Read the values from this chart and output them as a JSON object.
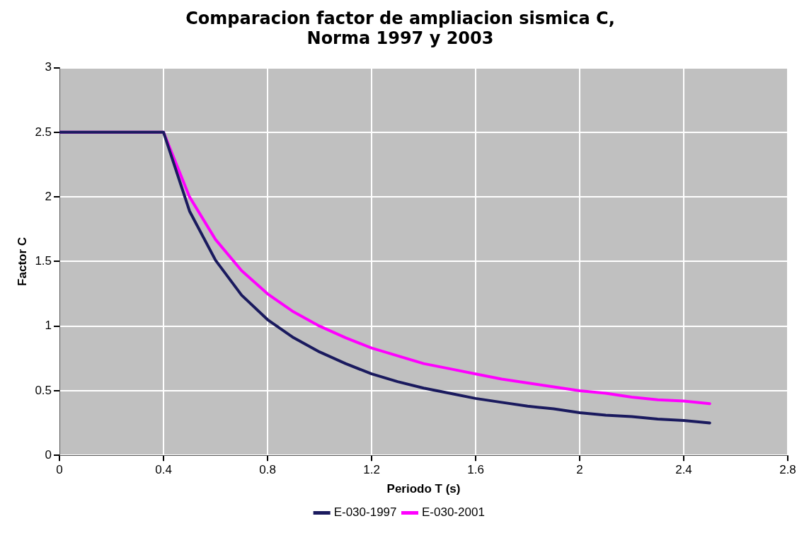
{
  "chart_data": {
    "type": "line",
    "title": [
      "Comparacion factor de ampliacion sismica C,",
      "Norma 1997 y 2003"
    ],
    "xlabel": "Periodo T (s)",
    "ylabel": "Factor C",
    "x": [
      0,
      0.4,
      0.5,
      0.6,
      0.7,
      0.8,
      0.9,
      1.0,
      1.1,
      1.2,
      1.3,
      1.4,
      1.5,
      1.6,
      1.7,
      1.8,
      1.9,
      2.0,
      2.1,
      2.2,
      2.3,
      2.4,
      2.5
    ],
    "series": [
      {
        "name": "E-030-1997",
        "color": "#1a1a5e",
        "values": [
          2.5,
          2.5,
          1.89,
          1.51,
          1.24,
          1.05,
          0.91,
          0.8,
          0.71,
          0.63,
          0.57,
          0.52,
          0.48,
          0.44,
          0.41,
          0.38,
          0.36,
          0.33,
          0.31,
          0.3,
          0.28,
          0.27,
          0.25
        ]
      },
      {
        "name": "E-030-2001",
        "color": "#ff00ff",
        "values": [
          2.5,
          2.5,
          2.0,
          1.67,
          1.43,
          1.25,
          1.11,
          1.0,
          0.91,
          0.83,
          0.77,
          0.71,
          0.67,
          0.63,
          0.59,
          0.56,
          0.53,
          0.5,
          0.48,
          0.45,
          0.43,
          0.42,
          0.4
        ]
      }
    ],
    "xlim": [
      0,
      2.8
    ],
    "xticks": [
      0,
      0.4,
      0.8,
      1.2,
      1.6,
      2,
      2.4,
      2.8
    ],
    "ylim": [
      0,
      3
    ],
    "yticks": [
      0,
      0.5,
      1,
      1.5,
      2,
      2.5,
      3
    ],
    "grid": true,
    "legend": "bottom",
    "marker": "none",
    "line_style": "solid"
  }
}
